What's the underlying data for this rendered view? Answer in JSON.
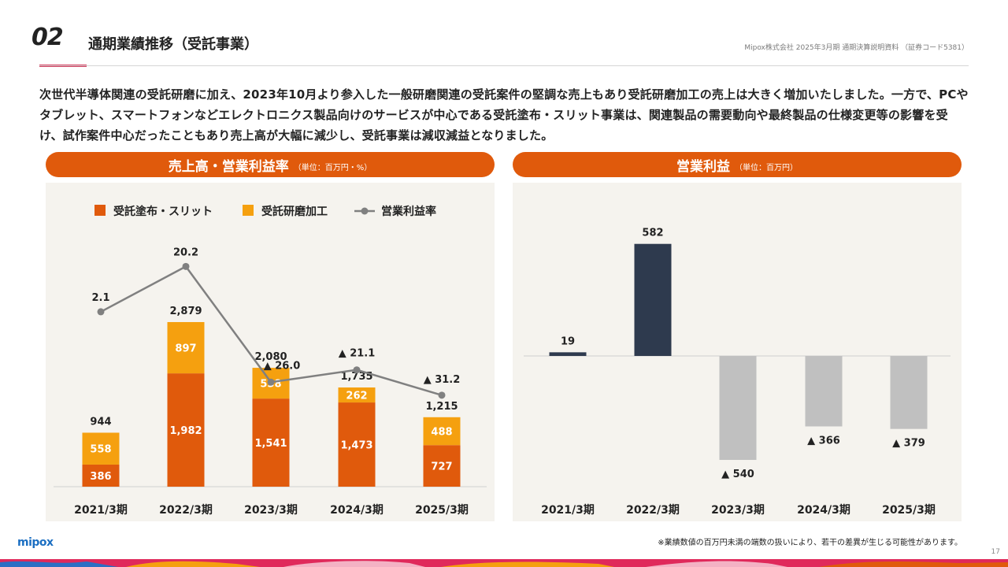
{
  "header": {
    "slide_number": "02",
    "title": "通期業績推移（受託事業）",
    "source_note": "Mipox株式会社 2025年3月期 通期決算説明資料 （証券コード5381）"
  },
  "summary": "次世代半導体関連の受託研磨に加え、2023年10月より参入した一般研磨関連の受託案件の堅調な売上もあり受託研磨加工の売上は大きく増加いたしました。一方で、PCやタブレット、スマートフォンなどエレクトロニクス製品向けのサービスが中心である受託塗布・スリット事業は、関連製品の需要動向や最終製品の仕様変更等の影響を受け、試作案件中心だったこともあり売上高が大幅に減少し、受託事業は減収減益となりました。",
  "left_panel": {
    "title": "売上高・営業利益率",
    "unit": "（単位：百万円・%）"
  },
  "right_panel": {
    "title": "営業利益",
    "unit": "（単位：百万円）"
  },
  "colors": {
    "coating": "#e05a0c",
    "polishing": "#f5a00f",
    "margin_line": "#808080",
    "profit_positive": "#2e3a4e",
    "profit_negative": "#c0c0c0",
    "header_orange": "#e05a0c"
  },
  "chart_data": [
    {
      "type": "bar",
      "stacked": true,
      "categories": [
        "2021/3期",
        "2022/3期",
        "2023/3期",
        "2024/3期",
        "2025/3期"
      ],
      "series": [
        {
          "name": "受託塗布・スリット",
          "values": [
            386,
            1982,
            1541,
            1473,
            727
          ],
          "labels": [
            "386",
            "1,982",
            "1,541",
            "1,473",
            "727"
          ]
        },
        {
          "name": "受託研磨加工",
          "values": [
            558,
            897,
            538,
            262,
            488
          ],
          "labels": [
            "558",
            "897",
            "538",
            "262",
            "488"
          ]
        }
      ],
      "totals": [
        944,
        2879,
        2080,
        1735,
        1215
      ],
      "total_labels": [
        "944",
        "2,879",
        "2,080",
        "1,735",
        "1,215"
      ],
      "line_series": {
        "name": "営業利益率",
        "values": [
          2.1,
          20.2,
          -26.0,
          -21.1,
          -31.2
        ],
        "labels": [
          "2.1",
          "20.2",
          "▲ 26.0",
          "▲ 21.1",
          "▲ 31.2"
        ]
      },
      "legend_position": "top"
    },
    {
      "type": "bar",
      "categories": [
        "2021/3期",
        "2022/3期",
        "2023/3期",
        "2024/3期",
        "2025/3期"
      ],
      "values": [
        19,
        582,
        -540,
        -366,
        -379
      ],
      "labels": [
        "19",
        "582",
        "▲ 540",
        "▲ 366",
        "▲ 379"
      ]
    }
  ],
  "footnote": "※業績数値の百万円未満の端数の扱いにより、若干の差異が生じる可能性があります。",
  "logo": "mipox",
  "page_number": "17"
}
